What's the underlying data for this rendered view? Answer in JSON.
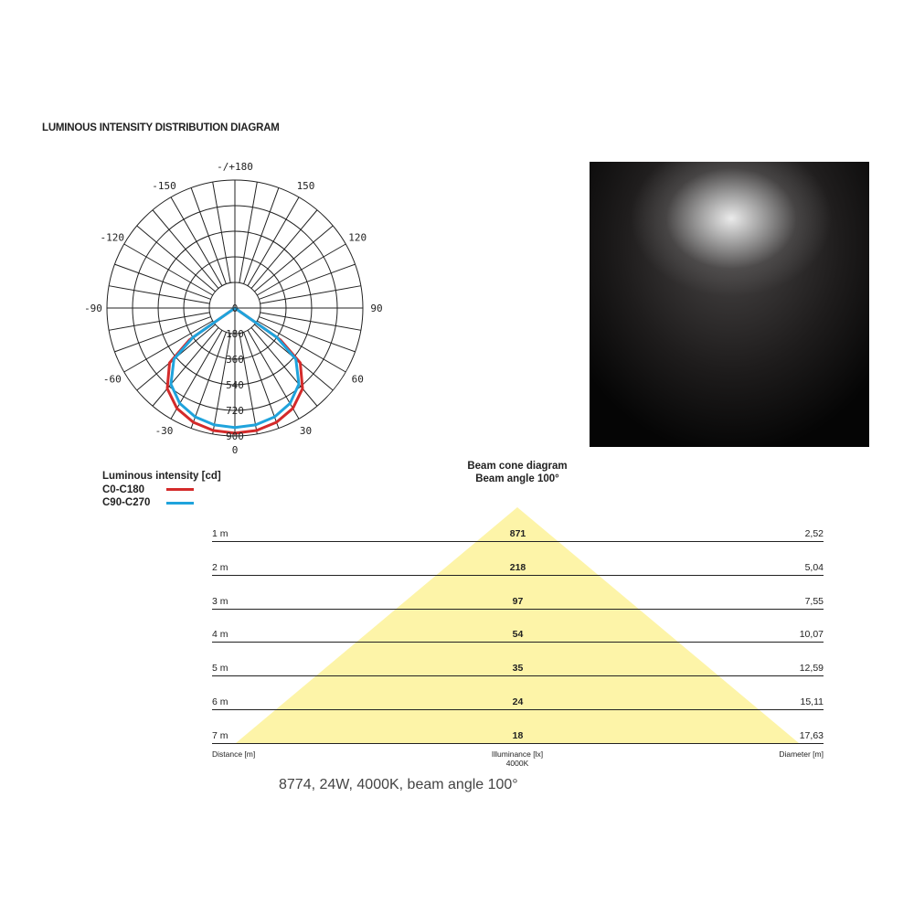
{
  "title": "LUMINOUS INTENSITY DISTRIBUTION DIAGRAM",
  "chart_data": [
    {
      "type": "line",
      "coordinate_system": "polar",
      "angle_labels": [
        "-/+180",
        "150",
        "120",
        "90",
        "60",
        "30",
        "0",
        "-30",
        "-60",
        "-90",
        "-120",
        "-150"
      ],
      "radial_tick_labels": [
        "0",
        "180",
        "360",
        "540",
        "720",
        "900"
      ],
      "rlim": [
        0,
        900
      ],
      "grid": true,
      "legend_title": "Luminous intensity [cd]",
      "legend_placement": "bottom-left",
      "series": [
        {
          "name": "C0-C180",
          "color": "#d42a2a",
          "angles": [
            -60,
            -55,
            -50,
            -40,
            -30,
            -20,
            -10,
            0,
            10,
            20,
            30,
            40,
            50,
            55,
            60
          ],
          "values": [
            0,
            390,
            600,
            740,
            815,
            855,
            875,
            880,
            875,
            855,
            815,
            740,
            600,
            390,
            0
          ]
        },
        {
          "name": "C90-C270",
          "color": "#1fa3dc",
          "angles": [
            -60,
            -55,
            -50,
            -40,
            -30,
            -20,
            -10,
            0,
            10,
            20,
            30,
            40,
            50,
            55,
            60
          ],
          "values": [
            0,
            360,
            560,
            700,
            775,
            815,
            835,
            840,
            835,
            815,
            775,
            700,
            560,
            360,
            0
          ]
        }
      ]
    },
    {
      "type": "table",
      "title": "Beam cone diagram",
      "subtitle": "Beam angle 100°",
      "columns": [
        "Distance [m]",
        "Illuminance [lx]",
        "Diameter [m]"
      ],
      "illuminance_note": "4000K",
      "rows": [
        {
          "distance": "1 m",
          "illuminance": "871",
          "diameter": "2,52"
        },
        {
          "distance": "2 m",
          "illuminance": "218",
          "diameter": "5,04"
        },
        {
          "distance": "3 m",
          "illuminance": "97",
          "diameter": "7,55"
        },
        {
          "distance": "4 m",
          "illuminance": "54",
          "diameter": "10,07"
        },
        {
          "distance": "5 m",
          "illuminance": "35",
          "diameter": "12,59"
        },
        {
          "distance": "6 m",
          "illuminance": "24",
          "diameter": "15,11"
        },
        {
          "distance": "7 m",
          "illuminance": "18",
          "diameter": "17,63"
        }
      ],
      "cone_color": "#fdf4a8"
    }
  ],
  "product_caption": "8774, 24W, 4000K, beam angle 100°"
}
